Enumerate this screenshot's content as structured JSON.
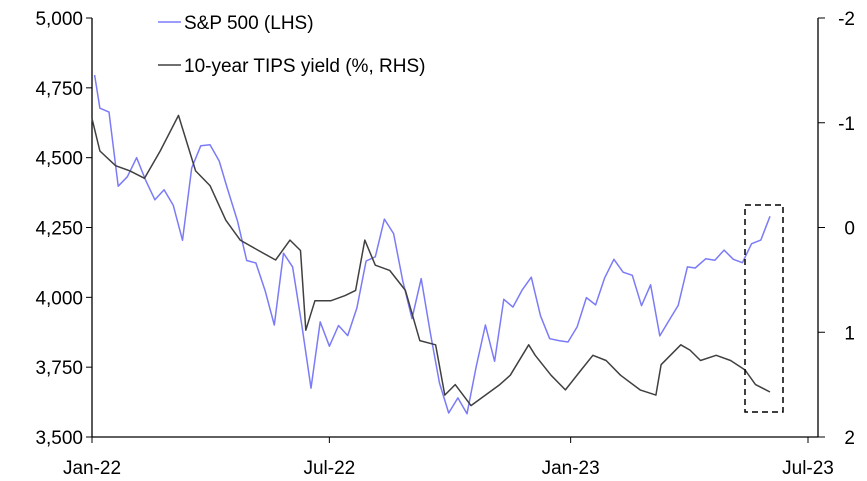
{
  "chart_data": {
    "type": "line",
    "title": "",
    "legend": [
      "S&P 500 (LHS)",
      "10-year TIPS yield (%, RHS)"
    ],
    "legend_placement": "top-left",
    "x_ticks": [
      {
        "label": "Jan-22",
        "date": "2022-01-01"
      },
      {
        "label": "Jul-22",
        "date": "2022-07-01"
      },
      {
        "label": "Jan-23",
        "date": "2023-01-01"
      },
      {
        "label": "Jul-23",
        "date": "2023-07-01"
      }
    ],
    "x_range": [
      "2022-01-01",
      "2023-07-01"
    ],
    "left_axis": {
      "range": [
        3500,
        5000
      ],
      "ticks": [
        "3,500",
        "3,750",
        "4,000",
        "4,250",
        "4,500",
        "4,750",
        "5,000"
      ],
      "tick_values": [
        3500,
        3750,
        4000,
        4250,
        4500,
        4750,
        5000
      ]
    },
    "right_axis": {
      "range": [
        -2,
        2
      ],
      "inverted": true,
      "ticks": [
        "-2",
        "-1",
        "0",
        "1",
        "2"
      ],
      "tick_values": [
        -2,
        -1,
        0,
        1,
        2
      ]
    },
    "series": [
      {
        "name": "S&P 500 (LHS)",
        "axis": "left",
        "color": "#7b7bf7",
        "points": [
          [
            "2022-01-03",
            4796
          ],
          [
            "2022-01-07",
            4677
          ],
          [
            "2022-01-14",
            4663
          ],
          [
            "2022-01-21",
            4398
          ],
          [
            "2022-01-28",
            4432
          ],
          [
            "2022-02-04",
            4500
          ],
          [
            "2022-02-11",
            4418
          ],
          [
            "2022-02-18",
            4349
          ],
          [
            "2022-02-25",
            4385
          ],
          [
            "2022-03-04",
            4329
          ],
          [
            "2022-03-11",
            4204
          ],
          [
            "2022-03-18",
            4463
          ],
          [
            "2022-03-25",
            4543
          ],
          [
            "2022-04-01",
            4546
          ],
          [
            "2022-04-08",
            4488
          ],
          [
            "2022-04-14",
            4393
          ],
          [
            "2022-04-22",
            4272
          ],
          [
            "2022-04-29",
            4132
          ],
          [
            "2022-05-06",
            4123
          ],
          [
            "2022-05-13",
            4024
          ],
          [
            "2022-05-20",
            3901
          ],
          [
            "2022-05-27",
            4158
          ],
          [
            "2022-06-03",
            4109
          ],
          [
            "2022-06-10",
            3901
          ],
          [
            "2022-06-17",
            3675
          ],
          [
            "2022-06-24",
            3912
          ],
          [
            "2022-07-01",
            3825
          ],
          [
            "2022-07-08",
            3899
          ],
          [
            "2022-07-15",
            3863
          ],
          [
            "2022-07-22",
            3962
          ],
          [
            "2022-07-29",
            4130
          ],
          [
            "2022-08-05",
            4145
          ],
          [
            "2022-08-12",
            4280
          ],
          [
            "2022-08-19",
            4228
          ],
          [
            "2022-08-26",
            4058
          ],
          [
            "2022-09-02",
            3924
          ],
          [
            "2022-09-09",
            4067
          ],
          [
            "2022-09-16",
            3873
          ],
          [
            "2022-09-23",
            3693
          ],
          [
            "2022-09-30",
            3586
          ],
          [
            "2022-10-07",
            3640
          ],
          [
            "2022-10-14",
            3583
          ],
          [
            "2022-10-21",
            3752
          ],
          [
            "2022-10-28",
            3901
          ],
          [
            "2022-11-04",
            3771
          ],
          [
            "2022-11-11",
            3993
          ],
          [
            "2022-11-18",
            3965
          ],
          [
            "2022-11-25",
            4026
          ],
          [
            "2022-12-02",
            4072
          ],
          [
            "2022-12-09",
            3934
          ],
          [
            "2022-12-16",
            3852
          ],
          [
            "2022-12-23",
            3845
          ],
          [
            "2022-12-30",
            3840
          ],
          [
            "2023-01-06",
            3895
          ],
          [
            "2023-01-13",
            3999
          ],
          [
            "2023-01-20",
            3973
          ],
          [
            "2023-01-27",
            4070
          ],
          [
            "2023-02-03",
            4136
          ],
          [
            "2023-02-10",
            4090
          ],
          [
            "2023-02-17",
            4079
          ],
          [
            "2023-02-24",
            3970
          ],
          [
            "2023-03-03",
            4045
          ],
          [
            "2023-03-10",
            3862
          ],
          [
            "2023-03-17",
            3917
          ],
          [
            "2023-03-24",
            3971
          ],
          [
            "2023-03-31",
            4109
          ],
          [
            "2023-04-06",
            4105
          ],
          [
            "2023-04-14",
            4138
          ],
          [
            "2023-04-21",
            4133
          ],
          [
            "2023-04-28",
            4169
          ],
          [
            "2023-05-05",
            4136
          ],
          [
            "2023-05-12",
            4124
          ],
          [
            "2023-05-19",
            4192
          ],
          [
            "2023-05-26",
            4205
          ],
          [
            "2023-06-02",
            4290
          ]
        ]
      },
      {
        "name": "10-year TIPS yield (%, RHS)",
        "axis": "right",
        "color": "#404040",
        "points": [
          [
            "2022-01-01",
            -1.04
          ],
          [
            "2022-01-07",
            -0.73
          ],
          [
            "2022-01-19",
            -0.59
          ],
          [
            "2022-01-30",
            -0.54
          ],
          [
            "2022-02-10",
            -0.47
          ],
          [
            "2022-02-22",
            -0.73
          ],
          [
            "2022-03-08",
            -1.07
          ],
          [
            "2022-03-21",
            -0.54
          ],
          [
            "2022-04-01",
            -0.4
          ],
          [
            "2022-04-13",
            -0.07
          ],
          [
            "2022-04-24",
            0.12
          ],
          [
            "2022-05-08",
            0.22
          ],
          [
            "2022-05-21",
            0.31
          ],
          [
            "2022-06-01",
            0.12
          ],
          [
            "2022-06-09",
            0.22
          ],
          [
            "2022-06-13",
            0.98
          ],
          [
            "2022-06-20",
            0.7
          ],
          [
            "2022-07-02",
            0.7
          ],
          [
            "2022-07-13",
            0.65
          ],
          [
            "2022-07-21",
            0.6
          ],
          [
            "2022-07-28",
            0.12
          ],
          [
            "2022-08-05",
            0.36
          ],
          [
            "2022-08-16",
            0.41
          ],
          [
            "2022-08-28",
            0.6
          ],
          [
            "2022-09-08",
            1.08
          ],
          [
            "2022-09-20",
            1.12
          ],
          [
            "2022-09-27",
            1.6
          ],
          [
            "2022-10-05",
            1.5
          ],
          [
            "2022-10-17",
            1.7
          ],
          [
            "2022-10-28",
            1.6
          ],
          [
            "2022-11-08",
            1.5
          ],
          [
            "2022-11-16",
            1.41
          ],
          [
            "2022-11-30",
            1.12
          ],
          [
            "2022-12-05",
            1.22
          ],
          [
            "2022-12-17",
            1.41
          ],
          [
            "2022-12-28",
            1.55
          ],
          [
            "2023-01-09",
            1.36
          ],
          [
            "2023-01-18",
            1.22
          ],
          [
            "2023-01-28",
            1.27
          ],
          [
            "2023-02-08",
            1.41
          ],
          [
            "2023-02-23",
            1.55
          ],
          [
            "2023-03-07",
            1.6
          ],
          [
            "2023-03-11",
            1.31
          ],
          [
            "2023-03-26",
            1.12
          ],
          [
            "2023-04-02",
            1.17
          ],
          [
            "2023-04-10",
            1.27
          ],
          [
            "2023-04-22",
            1.22
          ],
          [
            "2023-05-03",
            1.27
          ],
          [
            "2023-05-14",
            1.36
          ],
          [
            "2023-05-22",
            1.5
          ],
          [
            "2023-05-30",
            1.55
          ],
          [
            "2023-06-02",
            1.57
          ]
        ]
      }
    ],
    "annotation": "dashed box highlighting latest weeks",
    "grid": false
  }
}
